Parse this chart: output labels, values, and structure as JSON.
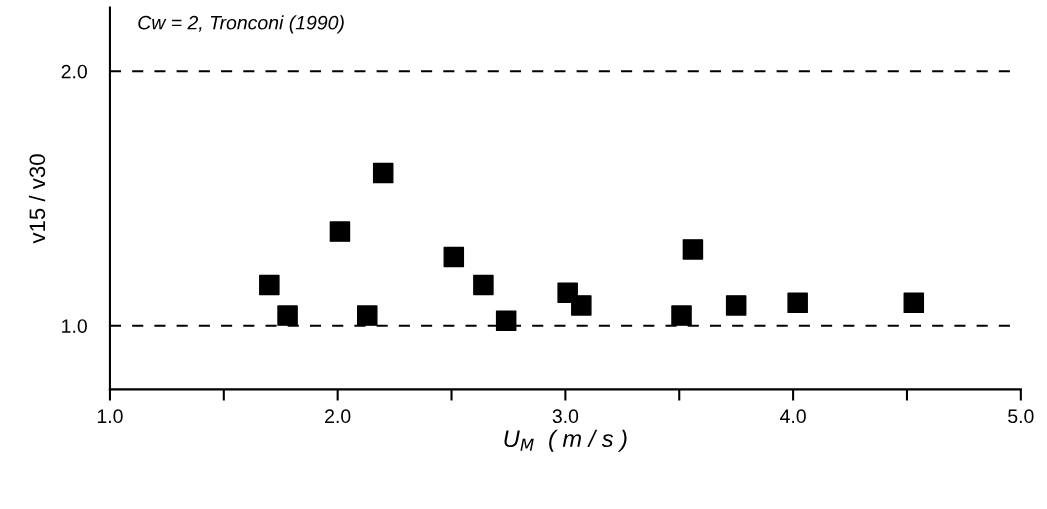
{
  "chart_data": {
    "type": "scatter",
    "xlabel": "U$_{M}$  ( m / s )",
    "ylabel": "v15 / v30",
    "annotations": [
      "Cw = 2, Tronconi (1990)"
    ],
    "x": [
      1.7,
      1.78,
      2.01,
      2.13,
      2.2,
      2.51,
      2.64,
      2.74,
      3.01,
      3.07,
      3.51,
      3.56,
      3.75,
      4.02,
      4.53
    ],
    "series": [
      {
        "color": "#000000",
        "values": [
          1.16,
          1.04,
          1.37,
          1.04,
          1.6,
          1.27,
          1.16,
          1.02,
          1.13,
          1.08,
          1.04,
          1.3,
          1.08,
          1.09,
          1.09
        ]
      }
    ],
    "marker": "square",
    "xlim": [
      1.0,
      5.0
    ],
    "ylim": [
      0.75,
      2.25
    ],
    "xticks": [
      {
        "value": 1.0,
        "label": "1.0"
      },
      {
        "value": 1.5,
        "label": null
      },
      {
        "value": 2.0,
        "label": "2.0"
      },
      {
        "value": 2.5,
        "label": null
      },
      {
        "value": 3.0,
        "label": "3.0"
      },
      {
        "value": 3.5,
        "label": null
      },
      {
        "value": 4.0,
        "label": "4.0"
      },
      {
        "value": 4.5,
        "label": null
      },
      {
        "value": 5.0,
        "label": "5.0"
      }
    ],
    "yticks": [
      {
        "value": 1.0,
        "label": "1.0"
      },
      {
        "value": 2.0,
        "label": "2.0"
      }
    ],
    "ref_lines": [
      {
        "axis": "y",
        "value": 1.0,
        "line_style": "dashed",
        "color": "#000000"
      },
      {
        "axis": "y",
        "value": 2.0,
        "line_style": "dashed",
        "color": "#000000"
      }
    ],
    "grid": false,
    "legend": false
  }
}
